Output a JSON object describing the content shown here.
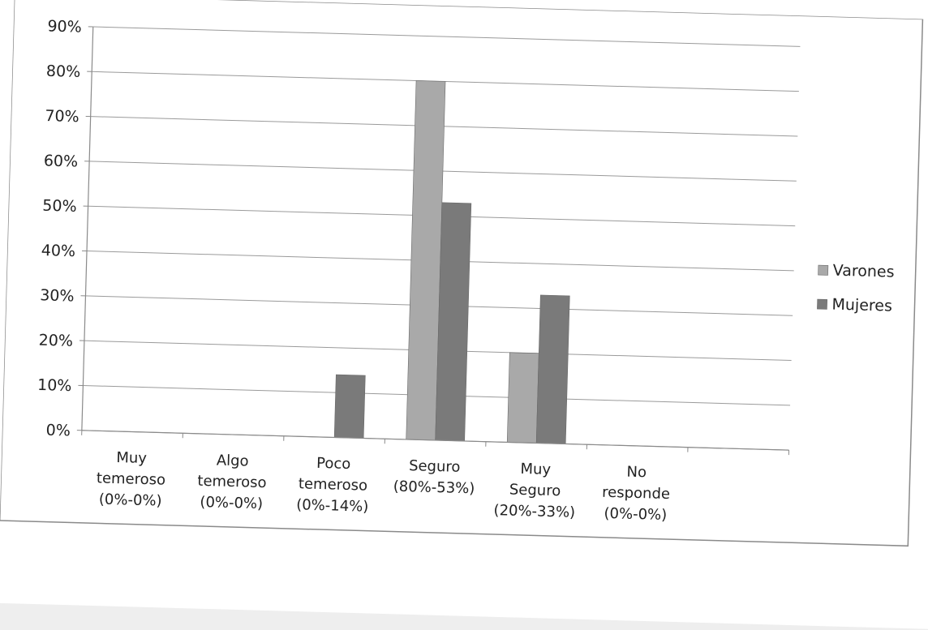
{
  "chart_data": {
    "type": "bar",
    "title": "",
    "xlabel": "",
    "ylabel": "",
    "ylim": [
      0,
      90
    ],
    "yticks": [
      "0%",
      "10%",
      "20%",
      "30%",
      "40%",
      "50%",
      "60%",
      "70%",
      "80%",
      "90%"
    ],
    "grid": true,
    "legend_position": "right",
    "categories": [
      [
        "Muy",
        "temeroso",
        "(0%-0%)"
      ],
      [
        "Algo",
        "temeroso",
        "(0%-0%)"
      ],
      [
        "Poco",
        "temeroso",
        "(0%-14%)"
      ],
      [
        "Seguro",
        "(80%-53%)"
      ],
      [
        "Muy",
        "Seguro",
        "(20%-33%)"
      ],
      [
        "No",
        "responde",
        "(0%-0%)"
      ]
    ],
    "series": [
      {
        "name": "Varones",
        "values": [
          0,
          0,
          0,
          80,
          20,
          0
        ],
        "color": "#a9a9a9"
      },
      {
        "name": "Mujeres",
        "values": [
          0,
          0,
          14,
          53,
          33,
          0
        ],
        "color": "#7a7a7a"
      }
    ]
  }
}
